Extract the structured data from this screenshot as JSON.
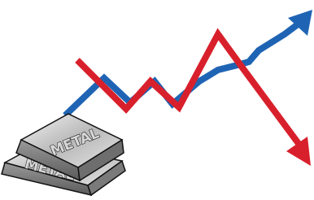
{
  "ingots": [
    {
      "label": "METAL"
    },
    {
      "label": "METAL"
    }
  ]
}
